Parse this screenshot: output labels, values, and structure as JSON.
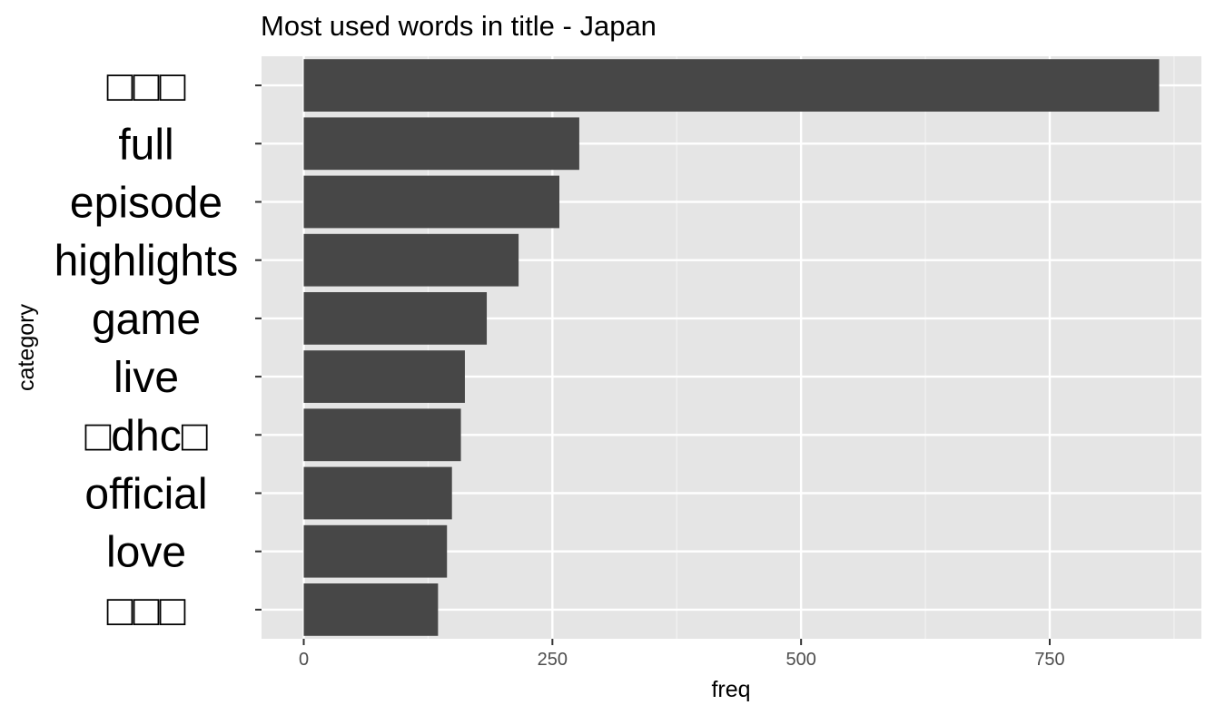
{
  "chart_data": {
    "type": "bar",
    "orientation": "horizontal",
    "title": "Most used words in title - Japan",
    "xlabel": "freq",
    "ylabel": "category",
    "xlim": [
      0,
      900
    ],
    "xticks": [
      0,
      250,
      500,
      750
    ],
    "xtick_labels": [
      "0",
      "250",
      "500",
      "750"
    ],
    "grid": true,
    "categories": [
      "□□□",
      "full",
      "episode",
      "highlights",
      "game",
      "live",
      "□dhc□",
      "official",
      "love",
      "□□□"
    ],
    "values": [
      860,
      277,
      257,
      216,
      184,
      162,
      158,
      149,
      144,
      135
    ],
    "colors": {
      "bar": "#474747",
      "panel": "#e5e5e5",
      "grid_major": "#ffffff",
      "grid_minor": "#f2f2f2",
      "ticks": "#333333"
    }
  }
}
